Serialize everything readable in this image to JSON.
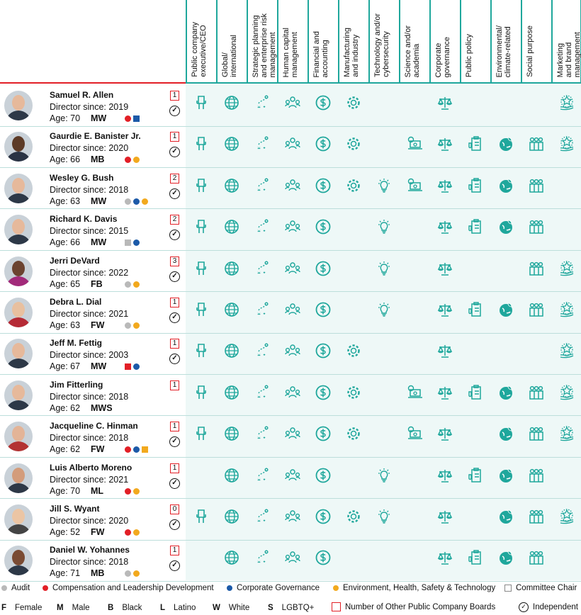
{
  "skills": [
    "Public company\nexecutive/CEO",
    "Global/\ninternational",
    "Strategic planning\nand enterprise risk\nmanagement",
    "Human capital\nmanagement",
    "Financial and\naccounting",
    "Manufacturing\nand industry",
    "Technology and/or\ncybersecurity",
    "Science and/or\nacademia",
    "Corporate\ngovernance",
    "Public policy",
    "Environmental/\nclimate-related",
    "Social purpose",
    "Marketing\nand brand\nmanagement"
  ],
  "skill_icons": [
    "chair-icon",
    "globe-icon",
    "strategy-icon",
    "people-icon",
    "dollar-icon",
    "gear-icon",
    "lightbulb-icon",
    "laptop-icon",
    "scales-icon",
    "clipboard-icon",
    "earth-leaf-icon",
    "group-icon",
    "hand-star-icon"
  ],
  "colors": {
    "audit": "#b9b9b9",
    "comp": "#e21f26",
    "gov": "#1c5aa8",
    "ehs": "#f2a91e",
    "teal": "#1fa79c",
    "chair": "#ffffff"
  },
  "directors": [
    {
      "name": "Samuel R. Allen",
      "since": "Director since: 2019",
      "age": "Age: 70",
      "code": "MW",
      "boards": "1",
      "committees": [
        "comp",
        "gov-chair"
      ],
      "skills": [
        1,
        1,
        1,
        1,
        1,
        1,
        0,
        0,
        1,
        0,
        0,
        0,
        1
      ]
    },
    {
      "name": "Gaurdie E. Banister Jr.",
      "since": "Director since: 2020",
      "age": "Age: 66",
      "code": "MB",
      "boards": "1",
      "committees": [
        "comp",
        "ehs"
      ],
      "skills": [
        1,
        1,
        1,
        1,
        1,
        1,
        0,
        1,
        1,
        1,
        1,
        1,
        1
      ]
    },
    {
      "name": "Wesley G. Bush",
      "since": "Director since: 2018",
      "age": "Age: 63",
      "code": "MW",
      "boards": "2",
      "committees": [
        "audit",
        "gov",
        "ehs"
      ],
      "skills": [
        1,
        1,
        1,
        1,
        1,
        1,
        1,
        1,
        1,
        1,
        1,
        1,
        0
      ]
    },
    {
      "name": "Richard K. Davis",
      "since": "Director since: 2015",
      "age": "Age: 66",
      "code": "MW",
      "boards": "2",
      "committees": [
        "audit-chair",
        "gov"
      ],
      "skills": [
        1,
        1,
        1,
        1,
        1,
        0,
        1,
        0,
        1,
        1,
        1,
        1,
        0
      ]
    },
    {
      "name": "Jerri DeVard",
      "since": "Director since: 2022",
      "age": "Age: 65",
      "code": "FB",
      "boards": "3",
      "committees": [
        "audit",
        "ehs"
      ],
      "skills": [
        1,
        1,
        1,
        1,
        1,
        0,
        1,
        0,
        1,
        0,
        0,
        1,
        1
      ]
    },
    {
      "name": "Debra L. Dial",
      "since": "Director since: 2021",
      "age": "Age: 63",
      "code": "FW",
      "boards": "1",
      "committees": [
        "audit",
        "ehs"
      ],
      "skills": [
        1,
        1,
        1,
        1,
        1,
        0,
        1,
        0,
        1,
        1,
        1,
        1,
        1
      ]
    },
    {
      "name": "Jeff M. Fettig",
      "since": "Director since: 2003",
      "age": "Age: 67",
      "code": "MW",
      "boards": "1",
      "committees": [
        "comp-chair",
        "gov"
      ],
      "skills": [
        1,
        1,
        1,
        1,
        1,
        1,
        0,
        0,
        1,
        0,
        0,
        0,
        1
      ]
    },
    {
      "name": "Jim Fitterling",
      "since": "Director since: 2018",
      "age": "Age: 62",
      "code": "MWS",
      "boards": "1",
      "committees": [],
      "skills": [
        1,
        1,
        1,
        1,
        1,
        1,
        0,
        1,
        1,
        1,
        1,
        1,
        1
      ]
    },
    {
      "name": "Jacqueline C. Hinman",
      "since": "Director since: 2018",
      "age": "Age: 62",
      "code": "FW",
      "boards": "1",
      "committees": [
        "comp",
        "gov",
        "ehs-chair"
      ],
      "skills": [
        1,
        1,
        1,
        1,
        1,
        1,
        0,
        1,
        1,
        0,
        1,
        1,
        1
      ]
    },
    {
      "name": "Luis Alberto Moreno",
      "since": "Director since: 2021",
      "age": "Age: 70",
      "code": "ML",
      "boards": "1",
      "committees": [
        "comp",
        "ehs"
      ],
      "skills": [
        0,
        1,
        1,
        1,
        1,
        0,
        1,
        0,
        1,
        1,
        1,
        1,
        0
      ]
    },
    {
      "name": "Jill S. Wyant",
      "since": "Director since: 2020",
      "age": "Age: 52",
      "code": "FW",
      "boards": "0",
      "committees": [
        "comp",
        "ehs"
      ],
      "skills": [
        1,
        1,
        1,
        1,
        1,
        1,
        1,
        0,
        1,
        0,
        1,
        1,
        1
      ]
    },
    {
      "name": "Daniel W. Yohannes",
      "since": "Director since: 2018",
      "age": "Age: 71",
      "code": "MB",
      "boards": "1",
      "committees": [
        "audit",
        "ehs"
      ],
      "skills": [
        0,
        1,
        1,
        1,
        1,
        0,
        0,
        0,
        1,
        1,
        1,
        1,
        0
      ]
    }
  ],
  "independent": [
    true,
    true,
    true,
    true,
    true,
    true,
    true,
    false,
    true,
    true,
    true,
    true
  ],
  "legend": {
    "audit": "Audit",
    "comp": "Compensation and Leadership Development",
    "gov": "Corporate Governance",
    "ehs": "Environment, Health, Safety & Technology",
    "chair": "Committee Chair",
    "F": "F",
    "female": "Female",
    "M": "M",
    "male": "Male",
    "B": "B",
    "black": "Black",
    "L": "L",
    "latino": "Latino",
    "W": "W",
    "white": "White",
    "S": "S",
    "lgbtq": "LGBTQ+",
    "boards": "Number of Other Public Company Boards",
    "independent": "Independent",
    "check": "✓"
  }
}
